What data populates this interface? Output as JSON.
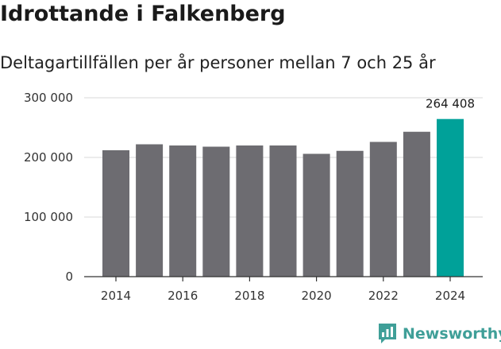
{
  "title": "Idrottande i Falkenberg",
  "subtitle": "Deltagartillfällen per år personer mellan 7 och 25 år",
  "brand": {
    "name": "Newsworthy",
    "icon": "newsworthy-logo-icon"
  },
  "colors": {
    "bar": "#6d6c71",
    "highlight": "#00a199",
    "grid": "#d8d8d8",
    "axis": "#333333",
    "brand": "#3f9f98"
  },
  "chart_data": {
    "type": "bar",
    "title": "Idrottande i Falkenberg",
    "subtitle": "Deltagartillfällen per år personer mellan 7 och 25 år",
    "xlabel": "",
    "ylabel": "",
    "categories": [
      "2014",
      "2015",
      "2016",
      "2017",
      "2018",
      "2019",
      "2020",
      "2021",
      "2022",
      "2023",
      "2024"
    ],
    "values": [
      212000,
      222000,
      220000,
      218000,
      220000,
      220000,
      206000,
      211000,
      226000,
      243000,
      264408
    ],
    "highlight_index": 10,
    "data_labels": [
      {
        "index": 10,
        "text": "264 408"
      }
    ],
    "ylim": [
      0,
      300000
    ],
    "yticks": [
      0,
      100000,
      200000,
      300000
    ],
    "ytick_labels": [
      "0",
      "100 000",
      "200 000",
      "300 000"
    ],
    "xtick_labels": [
      "2014",
      "2016",
      "2018",
      "2020",
      "2022",
      "2024"
    ],
    "grid": true
  }
}
